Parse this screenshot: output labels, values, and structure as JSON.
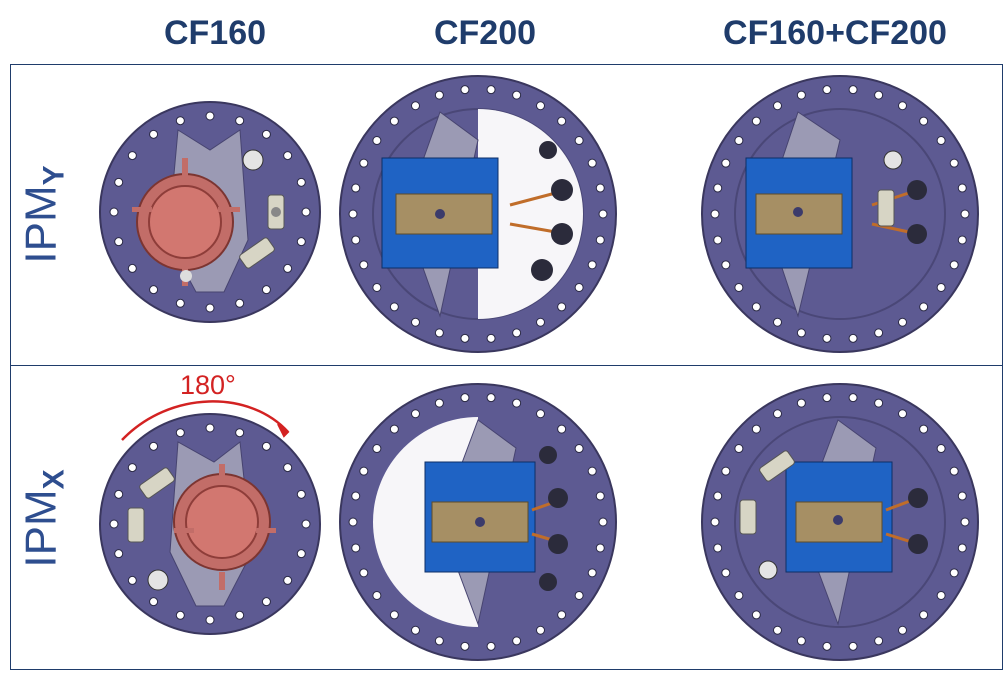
{
  "columns": [
    "CF160",
    "CF200",
    "CF160+CF200"
  ],
  "rows": [
    {
      "label_main": "IPM",
      "label_sub": "Y"
    },
    {
      "label_main": "IPM",
      "label_sub": "X"
    }
  ],
  "rotation_annotation": "180°",
  "colors": {
    "frame": "#1f3c6b",
    "label": "#2e4e8f",
    "flange": "#5d5a92",
    "flange_dark": "#3a375e",
    "magnet": "#1f63c4",
    "carrier": "#a68f64",
    "clamp": "#d27770",
    "arrow": "#d32222"
  }
}
